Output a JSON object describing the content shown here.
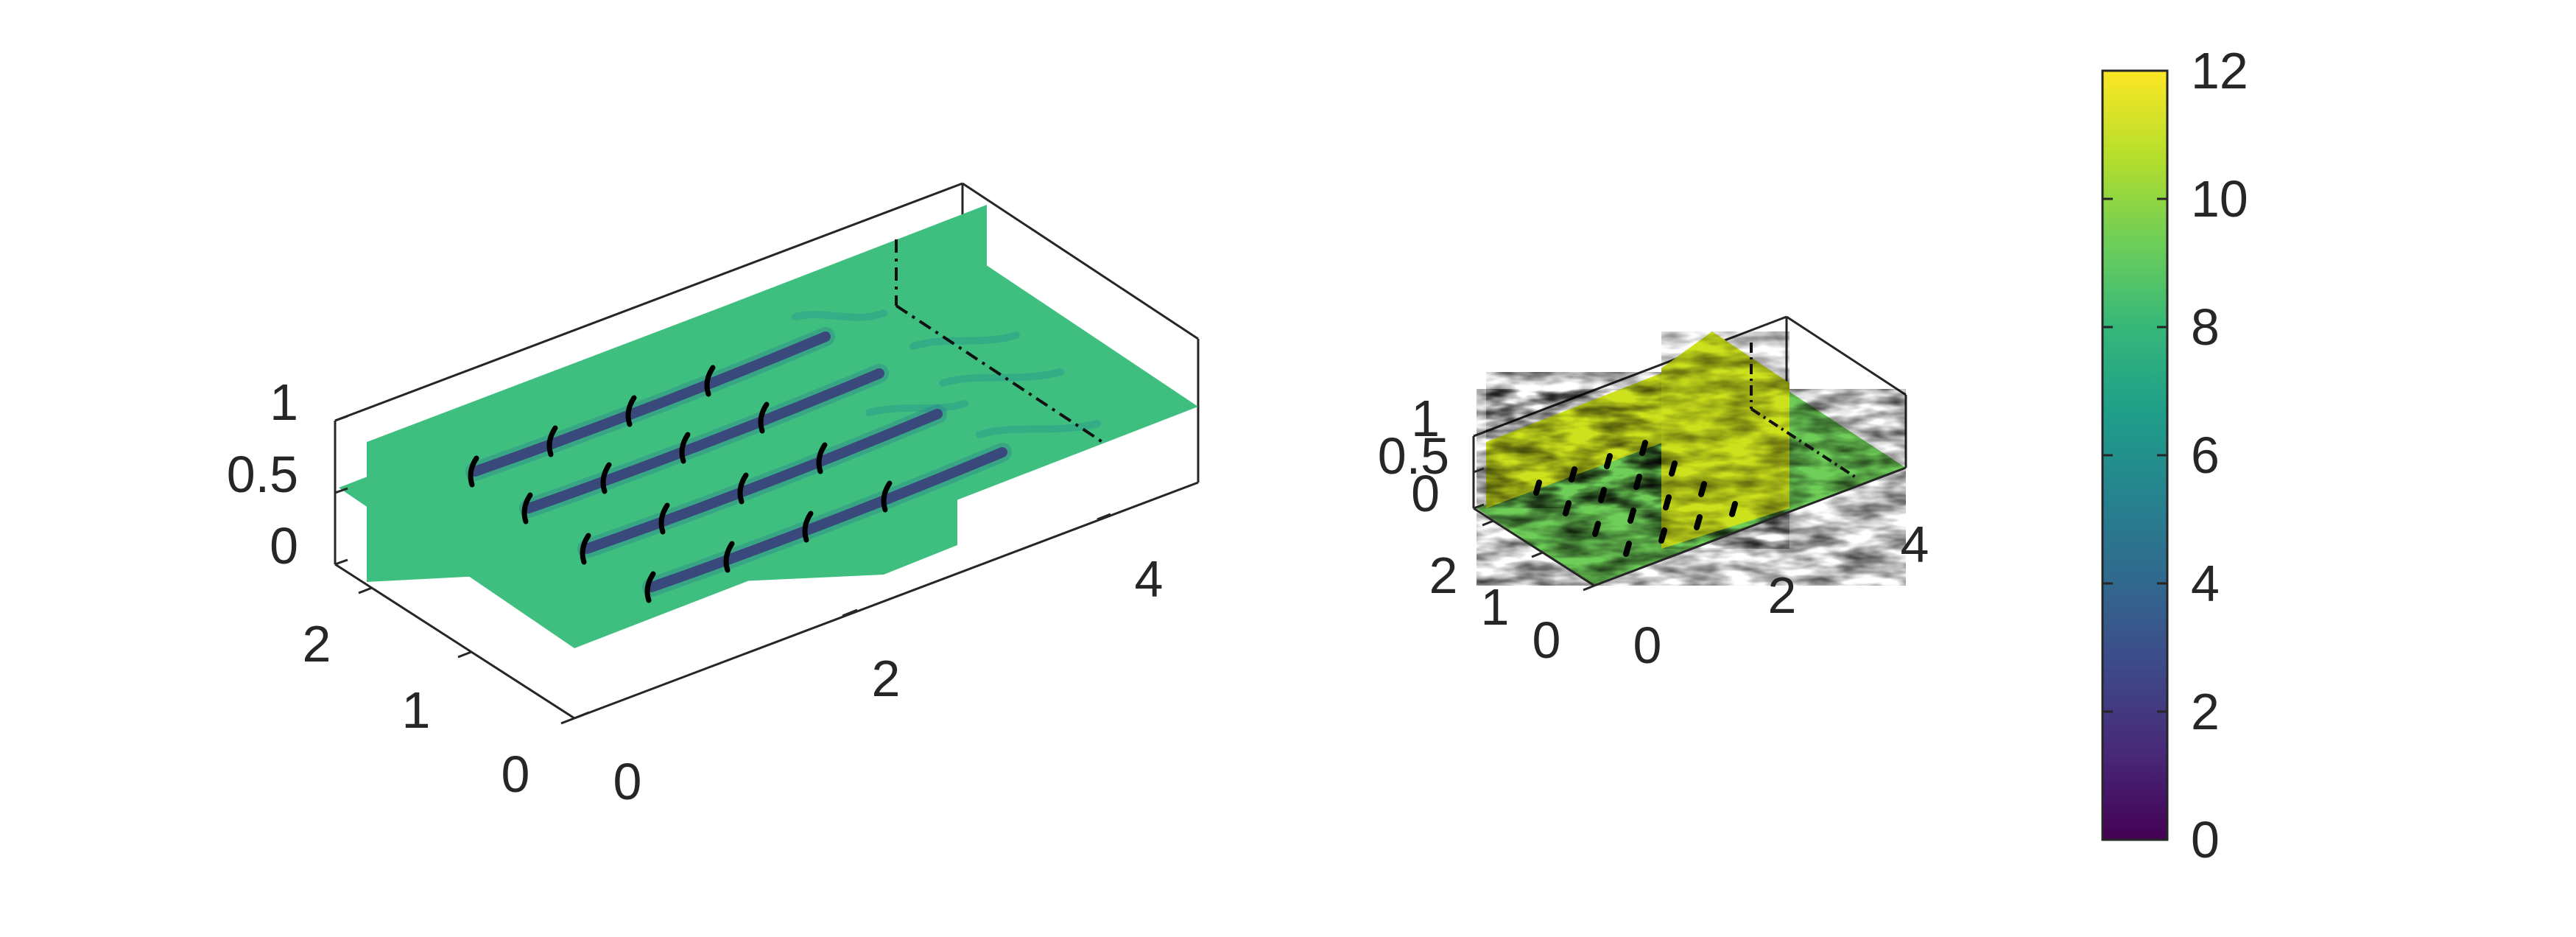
{
  "chart_data": [
    {
      "type": "heatmap",
      "panel": "left",
      "title": "",
      "xlabel": "",
      "ylabel": "",
      "zlabel": "",
      "xticks": [
        "0",
        "2",
        "4"
      ],
      "yticks": [
        "0",
        "1",
        "2"
      ],
      "zticks": [
        "0",
        "0.5",
        "1"
      ],
      "xlim": [
        0,
        5
      ],
      "ylim": [
        0,
        2.4
      ],
      "zlim": [
        0,
        1
      ],
      "grid": false,
      "rows": 4,
      "cols": 4,
      "wake_deficit_color": "#3b2a7a",
      "background_field_color": "#3fbf7f"
    },
    {
      "type": "heatmap",
      "panel": "right",
      "title": "",
      "xlabel": "",
      "ylabel": "",
      "zlabel": "",
      "xticks": [
        "0",
        "2",
        "4"
      ],
      "yticks": [
        "0",
        "1",
        "2"
      ],
      "zticks": [
        "0",
        "0.5",
        "1"
      ],
      "xlim": [
        0,
        5
      ],
      "ylim": [
        0,
        2.4
      ],
      "zlim": [
        0,
        1
      ],
      "grid": false,
      "rows": 4,
      "cols": 4,
      "field_colors": [
        "#cde11d",
        "#8fd744",
        "#3fbf7f",
        "#20a387",
        "#2a788e"
      ]
    }
  ],
  "colorbar": {
    "colormap": "viridis",
    "range": [
      0,
      12
    ],
    "ticks": [
      "0",
      "2",
      "4",
      "6",
      "8",
      "10",
      "12"
    ],
    "stops": [
      "#440154",
      "#482878",
      "#3e4989",
      "#31688e",
      "#26828e",
      "#1f9e89",
      "#35b779",
      "#6ece58",
      "#b5de2b",
      "#fde725"
    ]
  }
}
